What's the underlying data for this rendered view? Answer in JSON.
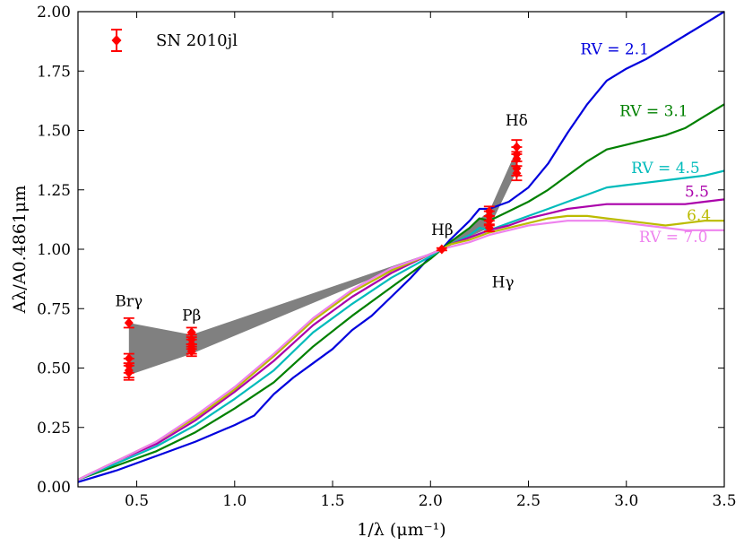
{
  "chart_data": {
    "type": "line",
    "xlabel": "1/λ (μm⁻¹)",
    "ylabel": "Aλ/A0.4861μm",
    "xlim": [
      0.2,
      3.5
    ],
    "ylim": [
      0.0,
      2.0
    ],
    "xticks": [
      0.5,
      1.0,
      1.5,
      2.0,
      2.5,
      3.0,
      3.5
    ],
    "xtick_labels": [
      "0.5",
      "1.0",
      "1.5",
      "2.0",
      "2.5",
      "3.0",
      "3.5"
    ],
    "yticks": [
      0.0,
      0.25,
      0.5,
      0.75,
      1.0,
      1.25,
      1.5,
      1.75,
      2.0
    ],
    "ytick_labels": [
      "0.00",
      "0.25",
      "0.50",
      "0.75",
      "1.00",
      "1.25",
      "1.50",
      "1.75",
      "2.00"
    ],
    "grid": false,
    "legend": {
      "position": "top-left",
      "entries": [
        {
          "label": "SN 2010jl",
          "color": "#ff0000",
          "marker": "diamond-errorbar"
        }
      ]
    },
    "series": [
      {
        "name": "R_V = 2.1",
        "color": "#0000dd",
        "x": [
          0.2,
          0.4,
          0.6,
          0.8,
          1.0,
          1.1,
          1.2,
          1.3,
          1.4,
          1.5,
          1.6,
          1.7,
          1.8,
          1.9,
          2.0,
          2.0575,
          2.1,
          2.2,
          2.25,
          2.3,
          2.4,
          2.5,
          2.6,
          2.7,
          2.8,
          2.9,
          3.0,
          3.1,
          3.2,
          3.3,
          3.4,
          3.5
        ],
        "y": [
          0.02,
          0.07,
          0.13,
          0.19,
          0.26,
          0.3,
          0.39,
          0.46,
          0.52,
          0.58,
          0.66,
          0.72,
          0.8,
          0.88,
          0.97,
          1.0,
          1.04,
          1.12,
          1.17,
          1.17,
          1.2,
          1.26,
          1.36,
          1.49,
          1.61,
          1.71,
          1.76,
          1.8,
          1.85,
          1.9,
          1.95,
          2.0
        ]
      },
      {
        "name": "R_V = 3.1",
        "color": "#008000",
        "x": [
          0.2,
          0.4,
          0.6,
          0.8,
          1.0,
          1.2,
          1.4,
          1.6,
          1.8,
          2.0,
          2.0575,
          2.1,
          2.2,
          2.25,
          2.3,
          2.4,
          2.5,
          2.6,
          2.7,
          2.8,
          2.9,
          3.0,
          3.1,
          3.2,
          3.3,
          3.4,
          3.5
        ],
        "y": [
          0.03,
          0.09,
          0.15,
          0.23,
          0.33,
          0.44,
          0.59,
          0.72,
          0.84,
          0.96,
          1.0,
          1.03,
          1.09,
          1.13,
          1.12,
          1.16,
          1.2,
          1.25,
          1.31,
          1.37,
          1.42,
          1.44,
          1.46,
          1.48,
          1.51,
          1.56,
          1.61
        ]
      },
      {
        "name": "R_V = 4.5",
        "color": "#00bbbb",
        "x": [
          0.2,
          0.4,
          0.6,
          0.8,
          1.0,
          1.2,
          1.4,
          1.6,
          1.8,
          2.0,
          2.0575,
          2.1,
          2.2,
          2.25,
          2.3,
          2.4,
          2.5,
          2.6,
          2.7,
          2.8,
          2.9,
          3.0,
          3.1,
          3.2,
          3.3,
          3.4,
          3.5
        ],
        "y": [
          0.03,
          0.1,
          0.17,
          0.26,
          0.37,
          0.49,
          0.65,
          0.77,
          0.88,
          0.97,
          1.0,
          1.02,
          1.06,
          1.09,
          1.08,
          1.11,
          1.14,
          1.17,
          1.2,
          1.23,
          1.26,
          1.27,
          1.28,
          1.29,
          1.3,
          1.31,
          1.33
        ]
      },
      {
        "name": "5.5",
        "color": "#aa00aa",
        "x": [
          0.2,
          0.4,
          0.6,
          0.8,
          1.0,
          1.2,
          1.4,
          1.6,
          1.8,
          2.0,
          2.0575,
          2.1,
          2.2,
          2.3,
          2.4,
          2.5,
          2.6,
          2.7,
          2.8,
          2.9,
          3.0,
          3.1,
          3.2,
          3.3,
          3.4,
          3.5
        ],
        "y": [
          0.03,
          0.11,
          0.18,
          0.28,
          0.4,
          0.53,
          0.68,
          0.8,
          0.9,
          0.98,
          1.0,
          1.02,
          1.05,
          1.08,
          1.1,
          1.13,
          1.15,
          1.17,
          1.18,
          1.19,
          1.19,
          1.19,
          1.19,
          1.19,
          1.2,
          1.21
        ]
      },
      {
        "name": "6.4",
        "color": "#bbbb00",
        "x": [
          0.2,
          0.4,
          0.6,
          0.8,
          1.0,
          1.2,
          1.4,
          1.6,
          1.8,
          2.0,
          2.0575,
          2.1,
          2.2,
          2.3,
          2.4,
          2.5,
          2.6,
          2.7,
          2.8,
          2.9,
          3.0,
          3.1,
          3.2,
          3.3,
          3.4,
          3.5
        ],
        "y": [
          0.03,
          0.11,
          0.19,
          0.29,
          0.41,
          0.55,
          0.7,
          0.82,
          0.91,
          0.98,
          1.0,
          1.02,
          1.04,
          1.07,
          1.09,
          1.11,
          1.13,
          1.14,
          1.14,
          1.13,
          1.12,
          1.11,
          1.1,
          1.11,
          1.12,
          1.12
        ]
      },
      {
        "name": "R_V = 7.0",
        "color": "#ee82ee",
        "x": [
          0.2,
          0.4,
          0.6,
          0.8,
          1.0,
          1.2,
          1.4,
          1.6,
          1.8,
          2.0,
          2.0575,
          2.1,
          2.2,
          2.3,
          2.4,
          2.5,
          2.6,
          2.7,
          2.8,
          2.9,
          3.0,
          3.1,
          3.2,
          3.3,
          3.4,
          3.5
        ],
        "y": [
          0.03,
          0.11,
          0.19,
          0.3,
          0.42,
          0.56,
          0.71,
          0.83,
          0.92,
          0.98,
          1.0,
          1.01,
          1.03,
          1.06,
          1.08,
          1.1,
          1.11,
          1.12,
          1.12,
          1.12,
          1.11,
          1.1,
          1.09,
          1.08,
          1.08,
          1.08
        ]
      }
    ],
    "bands": [
      {
        "color": "#808080",
        "x": [
          0.46,
          0.78,
          2.0575,
          2.3,
          2.44
        ],
        "lower": [
          0.47,
          0.56,
          1.0,
          1.09,
          1.33
        ],
        "upper": [
          0.69,
          0.64,
          1.0,
          1.16,
          1.42
        ]
      }
    ],
    "points": {
      "name": "SN 2010jl",
      "color": "#ff0000",
      "x": [
        0.46,
        0.46,
        0.46,
        0.46,
        0.46,
        0.78,
        0.78,
        0.78,
        0.78,
        0.78,
        2.0575,
        2.3,
        2.3,
        2.3,
        2.3,
        2.44,
        2.44,
        2.44,
        2.44,
        2.44
      ],
      "y": [
        0.69,
        0.54,
        0.51,
        0.49,
        0.48,
        0.65,
        0.62,
        0.6,
        0.58,
        0.57,
        1.0,
        1.16,
        1.14,
        1.12,
        1.09,
        1.43,
        1.4,
        1.38,
        1.34,
        1.32
      ],
      "yerr": [
        0.02,
        0.02,
        0.03,
        0.03,
        0.03,
        0.02,
        0.02,
        0.02,
        0.02,
        0.02,
        0.005,
        0.02,
        0.02,
        0.02,
        0.015,
        0.03,
        0.03,
        0.03,
        0.03,
        0.03
      ]
    },
    "annotations": [
      {
        "text": "Brγ",
        "x": 0.46,
        "y": 0.76,
        "color": "#000000"
      },
      {
        "text": "Pβ",
        "x": 0.78,
        "y": 0.7,
        "color": "#000000"
      },
      {
        "text": "Hβ",
        "x": 2.06,
        "y": 1.06,
        "color": "#000000"
      },
      {
        "text": "Hγ",
        "x": 2.37,
        "y": 0.84,
        "color": "#000000"
      },
      {
        "text": "Hδ",
        "x": 2.44,
        "y": 1.52,
        "color": "#000000"
      },
      {
        "text": "RV = 2.1",
        "x": 2.94,
        "y": 1.82,
        "color": "#0000dd"
      },
      {
        "text": "RV = 3.1",
        "x": 3.14,
        "y": 1.56,
        "color": "#008000"
      },
      {
        "text": "RV = 4.5",
        "x": 3.2,
        "y": 1.32,
        "color": "#00bbbb"
      },
      {
        "text": "5.5",
        "x": 3.36,
        "y": 1.22,
        "color": "#aa00aa"
      },
      {
        "text": "6.4",
        "x": 3.37,
        "y": 1.12,
        "color": "#bbbb00"
      },
      {
        "text": "RV = 7.0",
        "x": 3.24,
        "y": 1.03,
        "color": "#ee82ee"
      }
    ]
  }
}
